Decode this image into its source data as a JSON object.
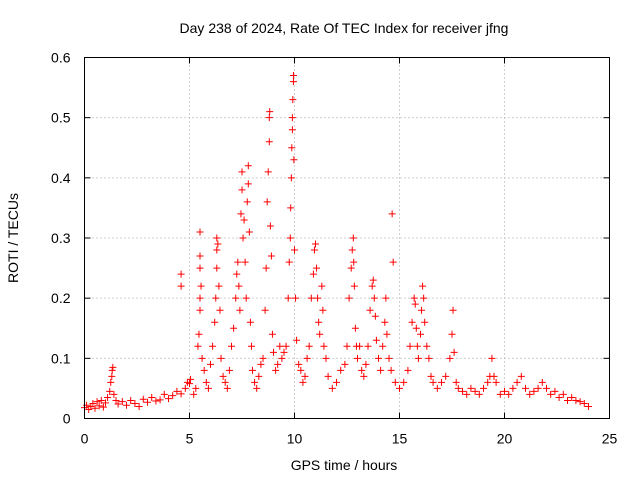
{
  "chart_data": {
    "type": "scatter",
    "title": "Day 238 of 2024, Rate Of TEC Index for receiver jfng",
    "xlabel": "GPS time / hours",
    "ylabel": "ROTI / TECUs",
    "xlim": [
      0,
      25
    ],
    "ylim": [
      0,
      0.6
    ],
    "xticks": [
      0,
      5,
      10,
      15,
      20,
      25
    ],
    "yticks": [
      0,
      0.1,
      0.2,
      0.3,
      0.4,
      0.5,
      0.6
    ],
    "xtick_labels": [
      "0",
      "5",
      "10",
      "15",
      "20",
      "25"
    ],
    "ytick_labels": [
      "0",
      "0.1",
      "0.2",
      "0.3",
      "0.4",
      "0.5",
      "0.6"
    ],
    "grid": true,
    "marker": "plus",
    "series": [
      {
        "name": "ROTI",
        "color": "#ff0000",
        "points": [
          [
            0.0,
            0.018
          ],
          [
            0.1,
            0.022
          ],
          [
            0.2,
            0.015
          ],
          [
            0.3,
            0.02
          ],
          [
            0.4,
            0.025
          ],
          [
            0.5,
            0.017
          ],
          [
            0.6,
            0.028
          ],
          [
            0.7,
            0.021
          ],
          [
            0.8,
            0.03
          ],
          [
            0.9,
            0.019
          ],
          [
            1.0,
            0.026
          ],
          [
            1.1,
            0.035
          ],
          [
            1.2,
            0.045
          ],
          [
            1.25,
            0.06
          ],
          [
            1.3,
            0.07
          ],
          [
            1.32,
            0.08
          ],
          [
            1.35,
            0.085
          ],
          [
            1.4,
            0.04
          ],
          [
            1.5,
            0.03
          ],
          [
            1.6,
            0.024
          ],
          [
            1.8,
            0.028
          ],
          [
            2.0,
            0.022
          ],
          [
            2.2,
            0.03
          ],
          [
            2.4,
            0.025
          ],
          [
            2.6,
            0.02
          ],
          [
            2.8,
            0.032
          ],
          [
            3.0,
            0.027
          ],
          [
            3.2,
            0.035
          ],
          [
            3.4,
            0.029
          ],
          [
            3.6,
            0.031
          ],
          [
            3.8,
            0.04
          ],
          [
            4.0,
            0.033
          ],
          [
            4.2,
            0.038
          ],
          [
            4.4,
            0.045
          ],
          [
            4.6,
            0.041
          ],
          [
            4.8,
            0.05
          ],
          [
            4.9,
            0.06
          ],
          [
            5.0,
            0.058
          ],
          [
            5.05,
            0.065
          ],
          [
            4.6,
            0.22
          ],
          [
            4.6,
            0.24
          ],
          [
            5.2,
            0.04
          ],
          [
            5.3,
            0.05
          ],
          [
            5.4,
            0.12
          ],
          [
            5.45,
            0.14
          ],
          [
            5.5,
            0.18
          ],
          [
            5.5,
            0.2
          ],
          [
            5.55,
            0.22
          ],
          [
            5.5,
            0.25
          ],
          [
            5.5,
            0.27
          ],
          [
            5.5,
            0.31
          ],
          [
            5.6,
            0.1
          ],
          [
            5.7,
            0.08
          ],
          [
            5.8,
            0.06
          ],
          [
            5.9,
            0.05
          ],
          [
            6.0,
            0.09
          ],
          [
            6.1,
            0.12
          ],
          [
            6.2,
            0.16
          ],
          [
            6.25,
            0.2
          ],
          [
            6.3,
            0.25
          ],
          [
            6.3,
            0.28
          ],
          [
            6.3,
            0.3
          ],
          [
            6.35,
            0.29
          ],
          [
            6.4,
            0.22
          ],
          [
            6.45,
            0.18
          ],
          [
            6.5,
            0.1
          ],
          [
            6.6,
            0.07
          ],
          [
            6.7,
            0.06
          ],
          [
            6.8,
            0.05
          ],
          [
            6.9,
            0.08
          ],
          [
            7.0,
            0.12
          ],
          [
            7.1,
            0.15
          ],
          [
            7.2,
            0.2
          ],
          [
            7.25,
            0.24
          ],
          [
            7.3,
            0.26
          ],
          [
            7.35,
            0.22
          ],
          [
            7.4,
            0.18
          ],
          [
            7.45,
            0.34
          ],
          [
            7.5,
            0.38
          ],
          [
            7.5,
            0.41
          ],
          [
            7.55,
            0.3
          ],
          [
            7.6,
            0.33
          ],
          [
            7.65,
            0.26
          ],
          [
            7.7,
            0.2
          ],
          [
            7.75,
            0.36
          ],
          [
            7.8,
            0.42
          ],
          [
            7.8,
            0.39
          ],
          [
            7.85,
            0.31
          ],
          [
            7.9,
            0.16
          ],
          [
            7.95,
            0.12
          ],
          [
            8.0,
            0.08
          ],
          [
            8.1,
            0.06
          ],
          [
            8.2,
            0.05
          ],
          [
            8.3,
            0.07
          ],
          [
            8.4,
            0.09
          ],
          [
            8.5,
            0.1
          ],
          [
            8.6,
            0.18
          ],
          [
            8.65,
            0.25
          ],
          [
            8.7,
            0.36
          ],
          [
            8.75,
            0.41
          ],
          [
            8.8,
            0.46
          ],
          [
            8.8,
            0.5
          ],
          [
            8.82,
            0.51
          ],
          [
            8.85,
            0.32
          ],
          [
            8.9,
            0.27
          ],
          [
            8.95,
            0.14
          ],
          [
            9.0,
            0.11
          ],
          [
            9.1,
            0.08
          ],
          [
            9.2,
            0.09
          ],
          [
            9.3,
            0.12
          ],
          [
            9.4,
            0.1
          ],
          [
            9.5,
            0.11
          ],
          [
            9.6,
            0.12
          ],
          [
            9.7,
            0.2
          ],
          [
            9.75,
            0.26
          ],
          [
            9.8,
            0.3
          ],
          [
            9.82,
            0.35
          ],
          [
            9.85,
            0.4
          ],
          [
            9.87,
            0.45
          ],
          [
            9.9,
            0.48
          ],
          [
            9.9,
            0.5
          ],
          [
            9.92,
            0.53
          ],
          [
            9.95,
            0.56
          ],
          [
            9.95,
            0.57
          ],
          [
            9.97,
            0.43
          ],
          [
            10.0,
            0.28
          ],
          [
            10.05,
            0.2
          ],
          [
            10.1,
            0.13
          ],
          [
            10.2,
            0.09
          ],
          [
            10.3,
            0.08
          ],
          [
            10.4,
            0.06
          ],
          [
            10.5,
            0.07
          ],
          [
            10.6,
            0.1
          ],
          [
            10.7,
            0.12
          ],
          [
            10.8,
            0.2
          ],
          [
            10.9,
            0.24
          ],
          [
            10.95,
            0.28
          ],
          [
            11.0,
            0.29
          ],
          [
            11.05,
            0.25
          ],
          [
            11.1,
            0.2
          ],
          [
            11.15,
            0.16
          ],
          [
            11.2,
            0.14
          ],
          [
            11.3,
            0.22
          ],
          [
            11.35,
            0.18
          ],
          [
            11.4,
            0.12
          ],
          [
            11.5,
            0.1
          ],
          [
            11.6,
            0.07
          ],
          [
            11.8,
            0.05
          ],
          [
            12.0,
            0.06
          ],
          [
            12.2,
            0.08
          ],
          [
            12.4,
            0.09
          ],
          [
            12.5,
            0.12
          ],
          [
            12.6,
            0.2
          ],
          [
            12.7,
            0.25
          ],
          [
            12.75,
            0.28
          ],
          [
            12.8,
            0.3
          ],
          [
            12.82,
            0.26
          ],
          [
            12.85,
            0.22
          ],
          [
            12.9,
            0.15
          ],
          [
            12.95,
            0.12
          ],
          [
            13.0,
            0.1
          ],
          [
            13.1,
            0.12
          ],
          [
            13.2,
            0.08
          ],
          [
            13.3,
            0.07
          ],
          [
            13.4,
            0.09
          ],
          [
            13.5,
            0.12
          ],
          [
            13.6,
            0.18
          ],
          [
            13.7,
            0.22
          ],
          [
            13.75,
            0.23
          ],
          [
            13.8,
            0.2
          ],
          [
            13.85,
            0.17
          ],
          [
            13.9,
            0.13
          ],
          [
            14.0,
            0.1
          ],
          [
            14.1,
            0.08
          ],
          [
            14.2,
            0.12
          ],
          [
            14.3,
            0.16
          ],
          [
            14.35,
            0.2
          ],
          [
            14.4,
            0.14
          ],
          [
            14.5,
            0.1
          ],
          [
            14.6,
            0.08
          ],
          [
            14.65,
            0.34
          ],
          [
            14.7,
            0.26
          ],
          [
            14.8,
            0.06
          ],
          [
            15.0,
            0.05
          ],
          [
            15.2,
            0.06
          ],
          [
            15.4,
            0.08
          ],
          [
            15.5,
            0.12
          ],
          [
            15.6,
            0.16
          ],
          [
            15.7,
            0.2
          ],
          [
            15.75,
            0.19
          ],
          [
            15.8,
            0.15
          ],
          [
            15.85,
            0.12
          ],
          [
            15.9,
            0.1
          ],
          [
            16.0,
            0.14
          ],
          [
            16.05,
            0.18
          ],
          [
            16.1,
            0.22
          ],
          [
            16.15,
            0.2
          ],
          [
            16.2,
            0.16
          ],
          [
            16.3,
            0.12
          ],
          [
            16.4,
            0.1
          ],
          [
            16.5,
            0.07
          ],
          [
            16.6,
            0.06
          ],
          [
            16.8,
            0.05
          ],
          [
            17.0,
            0.06
          ],
          [
            17.2,
            0.07
          ],
          [
            17.4,
            0.1
          ],
          [
            17.5,
            0.14
          ],
          [
            17.55,
            0.18
          ],
          [
            17.6,
            0.11
          ],
          [
            17.7,
            0.06
          ],
          [
            17.8,
            0.05
          ],
          [
            18.0,
            0.045
          ],
          [
            18.2,
            0.04
          ],
          [
            18.4,
            0.05
          ],
          [
            18.6,
            0.045
          ],
          [
            18.8,
            0.04
          ],
          [
            19.0,
            0.05
          ],
          [
            19.2,
            0.06
          ],
          [
            19.3,
            0.07
          ],
          [
            19.4,
            0.1
          ],
          [
            19.5,
            0.07
          ],
          [
            19.6,
            0.06
          ],
          [
            19.8,
            0.04
          ],
          [
            20.0,
            0.045
          ],
          [
            20.2,
            0.04
          ],
          [
            20.4,
            0.05
          ],
          [
            20.6,
            0.06
          ],
          [
            20.8,
            0.07
          ],
          [
            21.0,
            0.05
          ],
          [
            21.2,
            0.04
          ],
          [
            21.4,
            0.045
          ],
          [
            21.6,
            0.05
          ],
          [
            21.8,
            0.06
          ],
          [
            22.0,
            0.05
          ],
          [
            22.2,
            0.04
          ],
          [
            22.4,
            0.045
          ],
          [
            22.6,
            0.035
          ],
          [
            22.8,
            0.04
          ],
          [
            23.0,
            0.03
          ],
          [
            23.2,
            0.035
          ],
          [
            23.4,
            0.03
          ],
          [
            23.6,
            0.028
          ],
          [
            23.8,
            0.025
          ],
          [
            24.0,
            0.02
          ]
        ]
      }
    ]
  }
}
